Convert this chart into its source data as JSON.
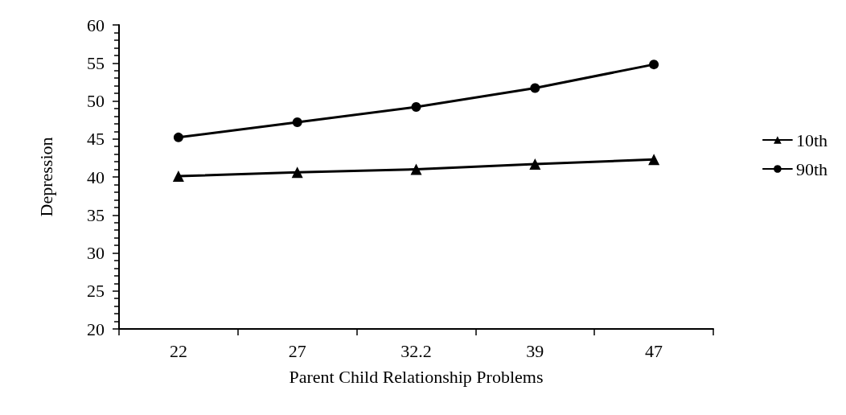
{
  "chart_data": {
    "type": "line",
    "xlabel": "Parent Child Relationship Problems",
    "ylabel": "Depression",
    "categories": [
      "22",
      "27",
      "32.2",
      "39",
      "47"
    ],
    "series": [
      {
        "name": "10th",
        "color": "#000000",
        "marker": "triangle",
        "values": [
          40.1,
          40.6,
          41.0,
          41.7,
          42.3
        ]
      },
      {
        "name": "90th",
        "color": "#000000",
        "marker": "circle",
        "values": [
          45.2,
          47.2,
          49.2,
          51.7,
          54.8
        ]
      }
    ],
    "ylim": [
      20,
      60
    ],
    "yticks": [
      20,
      25,
      30,
      35,
      40,
      45,
      50,
      55,
      60
    ],
    "grid": false,
    "legend": "right",
    "line_style": "solid"
  }
}
